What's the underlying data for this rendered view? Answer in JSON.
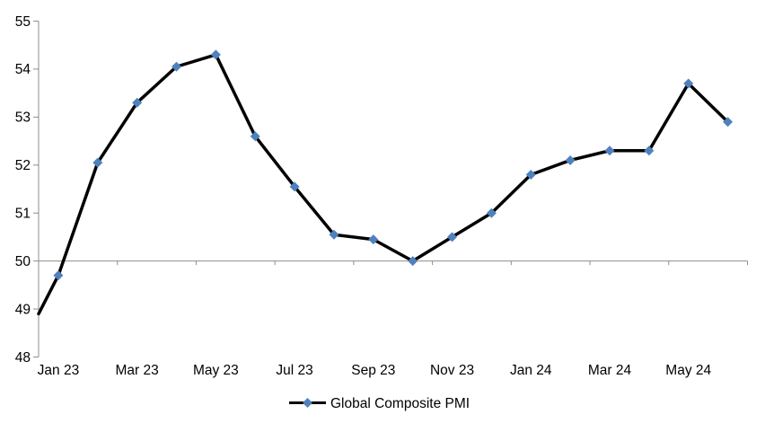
{
  "chart_data": {
    "type": "line",
    "title": "",
    "categories": [
      "Jan 23",
      "Feb 23",
      "Mar 23",
      "Apr 23",
      "May 23",
      "Jun 23",
      "Jul 23",
      "Aug 23",
      "Sep 23",
      "Oct 23",
      "Nov 23",
      "Dec 23",
      "Jan 24",
      "Feb 24",
      "Mar 24",
      "Apr 24",
      "May 24",
      "Jun 24"
    ],
    "series": [
      {
        "name": "Global Composite PMI",
        "values": [
          49.7,
          52.05,
          53.3,
          54.05,
          54.3,
          52.6,
          51.55,
          50.55,
          50.45,
          50.0,
          50.5,
          51.0,
          51.8,
          52.1,
          52.3,
          52.3,
          53.7,
          52.9
        ],
        "line_color": "#000000",
        "marker_shape": "diamond",
        "marker_color": "#4F81BD"
      }
    ],
    "lead_in_segment": {
      "value_at_left_axis": 48.9,
      "note": "series line enters the plot from the left axis edge without a marker"
    },
    "y_axis": {
      "min": 48,
      "max": 55,
      "tick_step": 1,
      "tick_labels_top_to_bottom": [
        "55",
        "54",
        "53",
        "52",
        "51",
        "50",
        "49",
        "48"
      ]
    },
    "x_axis": {
      "tick_labels": [
        "Jan 23",
        "Mar 23",
        "May 23",
        "Jul 23",
        "Sep 23",
        "Nov 23",
        "Jan 24",
        "Mar 24",
        "May 24"
      ],
      "label_interval": 2,
      "axis_crosses_at": 50,
      "labels_position": "low"
    },
    "legend": {
      "position": "bottom-center",
      "entries": [
        {
          "label": "Global Composite PMI",
          "swatch": "black-line-with-blue-diamond"
        }
      ]
    },
    "colors": {
      "axis": "#8E8E8E",
      "text": "#000000",
      "background": "#FFFFFF"
    },
    "grid": "off",
    "legend_label": "Global Composite PMI"
  }
}
